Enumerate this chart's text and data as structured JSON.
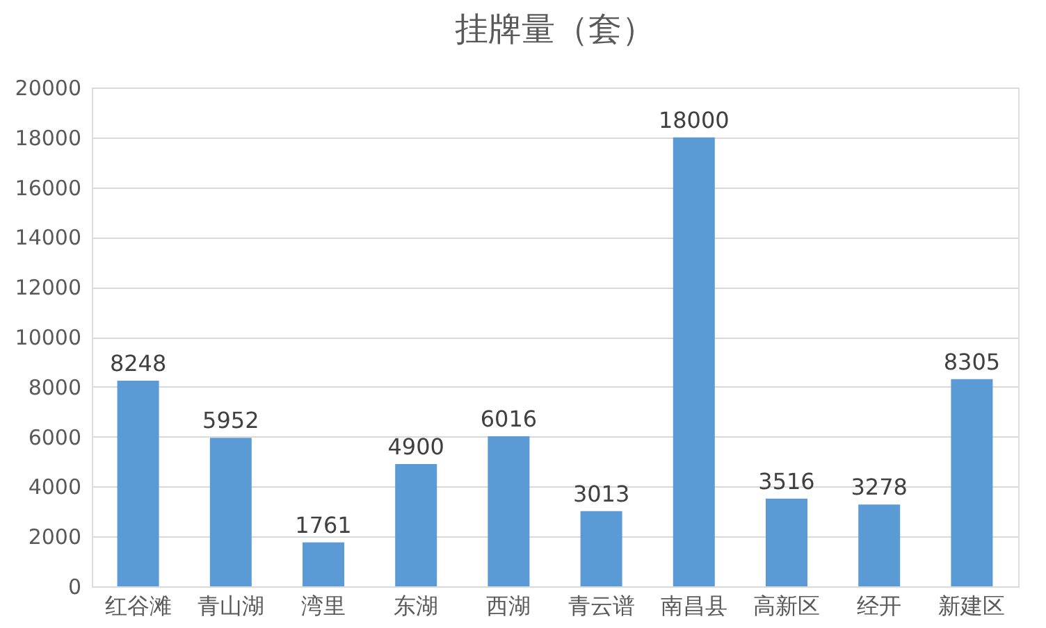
{
  "chart_data": {
    "type": "bar",
    "title": "挂牌量（套）",
    "categories": [
      "红谷滩",
      "青山湖",
      "湾里",
      "东湖",
      "西湖",
      "青云谱",
      "南昌县",
      "高新区",
      "经开",
      "新建区"
    ],
    "values": [
      8248,
      5952,
      1761,
      4900,
      6016,
      3013,
      18000,
      3516,
      3278,
      8305
    ],
    "color": "#5b9bd5",
    "ylim": [
      0,
      20000
    ],
    "yticks": [
      0,
      2000,
      4000,
      6000,
      8000,
      10000,
      12000,
      14000,
      16000,
      18000,
      20000
    ],
    "grid": "y",
    "data_labels": true
  }
}
